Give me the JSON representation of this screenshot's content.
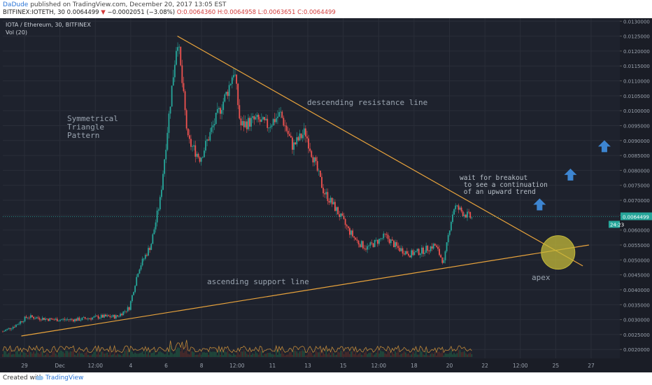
{
  "header": {
    "author": "DaDude",
    "published": " published on TradingView.com, December 20, 2017 13:05 EST",
    "symbol": "BITFINEX:IOTETH, 30 ",
    "close_val": "0.0064499",
    "change_arrow": "▼",
    "change": "−0.0002051 (−3.08%)",
    "open": "O:0.0064360",
    "high": "H:0.0064958",
    "low": "L:0.0063651",
    "close": "C:0.0064499"
  },
  "legend": {
    "title": "IOTA / Ethereum, 30, BITFINEX",
    "vol": "Vol (20)"
  },
  "footer": {
    "created": "Created with",
    "brand": "TradingView"
  },
  "annotations": {
    "triangle": "Symmetrical\nTriangle\nPattern",
    "resistance": "descending resistance line",
    "support": "ascending support line",
    "breakout": "wait for breakout\n to see a continuation\n of an upward trend",
    "apex": "apex"
  },
  "colors": {
    "bg": "#1e222d",
    "grid": "#2a2e39",
    "line": "#e8a33c",
    "up": "#26a69a",
    "down": "#ef5350",
    "arrow": "#3d85d1",
    "apex": "#c4b93a",
    "price_tag": "#26a69a"
  },
  "chart_data": {
    "type": "candlestick",
    "x_ticks": [
      "29",
      "Dec",
      "12:00",
      "4",
      "6",
      "8",
      "12:00",
      "11",
      "13",
      "15",
      "12:00",
      "18",
      "20",
      "22",
      "12:00",
      "25",
      "27"
    ],
    "y_ticks": [
      "0.0130000",
      "0.0125000",
      "0.0120000",
      "0.0115000",
      "0.0110000",
      "0.0105000",
      "0.0100000",
      "0.0095000",
      "0.0090000",
      "0.0085000",
      "0.0080000",
      "0.0075000",
      "0.0070000",
      "0.0065000",
      "0.0060000",
      "0.0055000",
      "0.0050000",
      "0.0045000",
      "0.0040000",
      "0.0035000",
      "0.0030000",
      "0.0025000",
      "0.0020000"
    ],
    "ylim": [
      0.0017,
      0.0131
    ],
    "last_price": "0.0064499",
    "countdown": "24:23",
    "price_path": [
      [
        0.0,
        0.0026
      ],
      [
        0.02,
        0.0028
      ],
      [
        0.04,
        0.0031
      ],
      [
        0.08,
        0.003
      ],
      [
        0.12,
        0.003
      ],
      [
        0.16,
        0.0031
      ],
      [
        0.185,
        0.0031
      ],
      [
        0.205,
        0.0034
      ],
      [
        0.22,
        0.0047
      ],
      [
        0.24,
        0.0055
      ],
      [
        0.255,
        0.007
      ],
      [
        0.27,
        0.01
      ],
      [
        0.283,
        0.0125
      ],
      [
        0.3,
        0.009
      ],
      [
        0.32,
        0.0084
      ],
      [
        0.345,
        0.0097
      ],
      [
        0.365,
        0.0107
      ],
      [
        0.375,
        0.0114
      ],
      [
        0.385,
        0.0095
      ],
      [
        0.41,
        0.0097
      ],
      [
        0.43,
        0.0095
      ],
      [
        0.45,
        0.0099
      ],
      [
        0.47,
        0.0088
      ],
      [
        0.49,
        0.0093
      ],
      [
        0.505,
        0.0083
      ],
      [
        0.52,
        0.0073
      ],
      [
        0.54,
        0.0067
      ],
      [
        0.56,
        0.006
      ],
      [
        0.575,
        0.0056
      ],
      [
        0.59,
        0.0054
      ],
      [
        0.62,
        0.0058
      ],
      [
        0.64,
        0.0054
      ],
      [
        0.66,
        0.0052
      ],
      [
        0.68,
        0.0053
      ],
      [
        0.7,
        0.0055
      ],
      [
        0.715,
        0.0049
      ],
      [
        0.725,
        0.0062
      ],
      [
        0.732,
        0.0068
      ],
      [
        0.745,
        0.0066
      ],
      [
        0.76,
        0.0064
      ]
    ],
    "resistance_line": [
      [
        0.283,
        0.0125
      ],
      [
        0.94,
        0.0048
      ]
    ],
    "support_line": [
      [
        0.03,
        0.00245
      ],
      [
        0.95,
        0.0055
      ]
    ],
    "blue_arrows": [
      [
        0.87,
        0.00685
      ],
      [
        0.92,
        0.00785
      ],
      [
        0.975,
        0.0088
      ]
    ],
    "apex_circle": [
      0.9,
      0.00525
    ]
  }
}
